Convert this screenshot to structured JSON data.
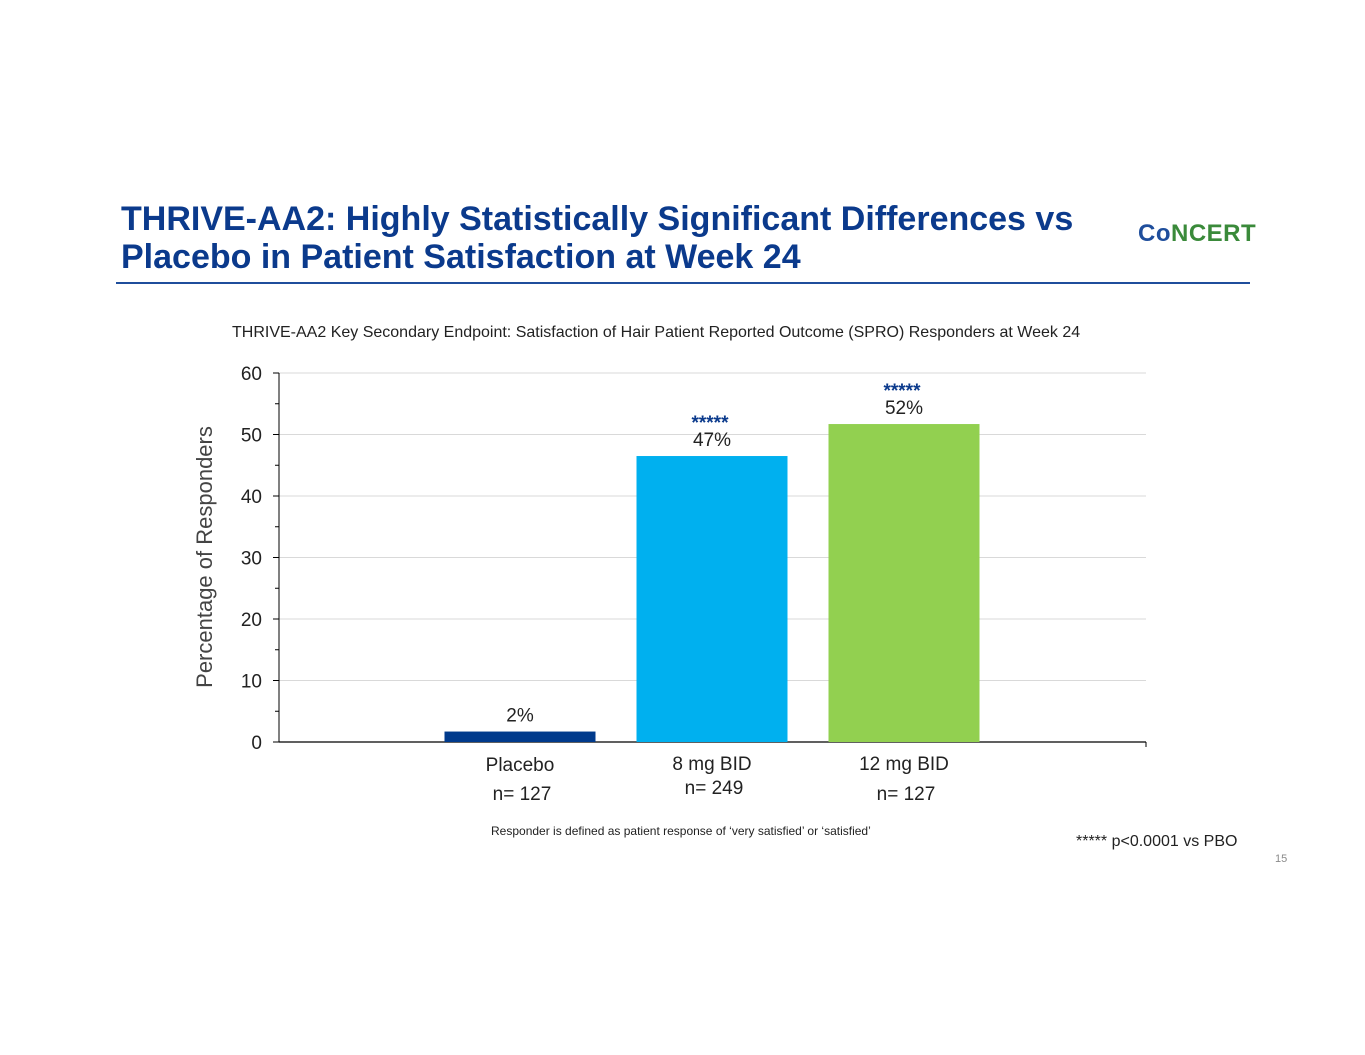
{
  "slide": {
    "title_line1": "THRIVE-AA2: Highly Statistically Significant Differences vs",
    "title_line2": "Placebo in Patient Satisfaction at Week 24",
    "logo_part1": "Co",
    "logo_part2": "NCERT",
    "footnote": "Responder is defined as patient response of ‘very satisfied’ or ‘satisfied’",
    "significance_key": "***** p<0.0001 vs PBO",
    "page_number": "15"
  },
  "colors": {
    "title": "#0b3a8c",
    "placebo": "#003a8c",
    "dose8": "#00b0ef",
    "dose12": "#92d050",
    "significance": "#0b3a8c"
  },
  "chart_data": {
    "type": "bar",
    "title": "THRIVE-AA2 Key Secondary Endpoint: Satisfaction of Hair Patient Reported Outcome (SPRO) Responders at Week 24",
    "xlabel": "",
    "ylabel": "Percentage of Responders",
    "ylim": [
      0,
      60
    ],
    "yticks": [
      "0",
      "10",
      "20",
      "30",
      "40",
      "50",
      "60"
    ],
    "grid": true,
    "categories": [
      "Placebo",
      "8 mg BID",
      "12 mg BID"
    ],
    "n_labels": [
      "n= 127",
      "n= 249",
      "n= 127"
    ],
    "values": [
      1.7,
      46.5,
      51.7
    ],
    "data_labels": [
      "2%",
      "47%",
      "52%"
    ],
    "significance": [
      "",
      "*****",
      "*****"
    ],
    "bar_colors": [
      "#003a8c",
      "#00b0ef",
      "#92d050"
    ]
  }
}
